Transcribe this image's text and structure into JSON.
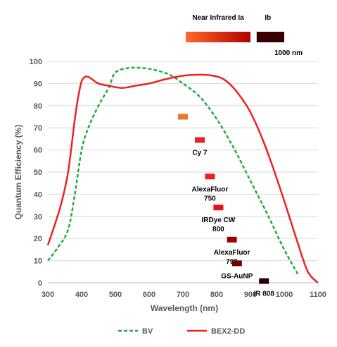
{
  "chart_data": {
    "type": "line",
    "xlabel": "Wavelength (nm)",
    "ylabel": "Quantum Efficiency (%)",
    "xlim": [
      300,
      1100
    ],
    "ylim": [
      0,
      100
    ],
    "xticks": [
      300,
      400,
      500,
      600,
      700,
      800,
      900,
      1000,
      1100
    ],
    "yticks": [
      0,
      10,
      20,
      30,
      40,
      50,
      60,
      70,
      80,
      90,
      100
    ],
    "grid": "horizontal",
    "legend_position": "bottom",
    "series": [
      {
        "name": "BV",
        "color": "#22aa44",
        "style": "dashed",
        "x": [
          300,
          330,
          360,
          380,
          400,
          420,
          450,
          480,
          500,
          540,
          580,
          620,
          660,
          700,
          750,
          800,
          850,
          900,
          950,
          1000,
          1040
        ],
        "y": [
          10,
          16,
          24,
          40,
          60,
          70,
          80,
          88,
          95,
          97,
          97,
          96,
          94,
          90,
          84,
          74,
          61,
          46,
          31,
          15,
          4
        ]
      },
      {
        "name": "BEX2-DD",
        "color": "#ee2222",
        "style": "solid",
        "x": [
          300,
          320,
          340,
          360,
          380,
          390,
          400,
          410,
          420,
          430,
          450,
          480,
          520,
          560,
          600,
          650,
          700,
          750,
          790,
          820,
          850,
          880,
          900,
          930,
          960,
          1000,
          1040,
          1070,
          1100
        ],
        "y": [
          17,
          26,
          36,
          50,
          74,
          84,
          91,
          93,
          93,
          92,
          90,
          89,
          88,
          89,
          90,
          92,
          93.5,
          94,
          93.5,
          92,
          88,
          82,
          77,
          67,
          55,
          37,
          18,
          5,
          0
        ]
      }
    ],
    "bands": [
      {
        "label": "Near Infrared Ia",
        "from": 700,
        "to": 900,
        "color_from": "#ff6a2a",
        "color_to": "#b00000"
      },
      {
        "label": "Ib",
        "from": 910,
        "to": 1000,
        "color": "#3a0000"
      }
    ],
    "band_end_label": "1000 nm",
    "dyes": [
      {
        "label": "",
        "x": 700,
        "y": 75,
        "color": "#ee7722"
      },
      {
        "label_lines": [
          "Cy 7"
        ],
        "x": 750,
        "y": 64.5,
        "color": "#ee2020"
      },
      {
        "label_lines": [
          "AlexaFluor",
          "750"
        ],
        "x": 780,
        "y": 48,
        "color": "#ee2020"
      },
      {
        "label_lines": [
          "IRDye CW",
          "800"
        ],
        "x": 805,
        "y": 34,
        "color": "#e01515"
      },
      {
        "label_lines": [
          "AlexaFluor",
          "790"
        ],
        "x": 845,
        "y": 19.5,
        "color": "#990000"
      },
      {
        "label_lines": [
          "GS-AuNP"
        ],
        "x": 860,
        "y": 8.8,
        "color": "#6a0000"
      },
      {
        "label_lines": [
          "IR 808"
        ],
        "x": 940,
        "y": 0.8,
        "color": "#2a0000"
      }
    ]
  }
}
